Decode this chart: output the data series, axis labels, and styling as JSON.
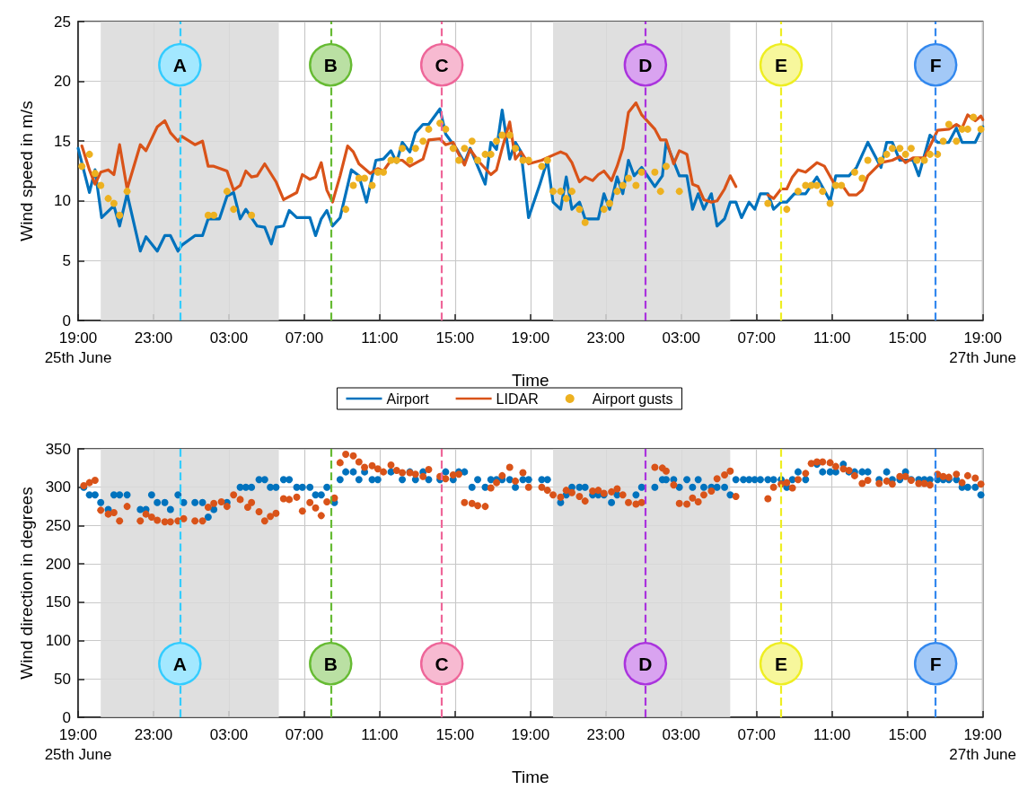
{
  "chart_data": [
    {
      "type": "line",
      "xlabel": "Time",
      "ylabel": "Wind speed in m/s",
      "xlim": [
        "--06-25T19:00",
        "--06-27T19:00"
      ],
      "xticks": [
        {
          "value": "--06-25T19:00",
          "label": "19:00\n25th June"
        },
        {
          "value": "--06-25T23:00",
          "label": "23:00"
        },
        {
          "value": "--06-26T03:00",
          "label": "03:00"
        },
        {
          "value": "--06-26T07:00",
          "label": "07:00"
        },
        {
          "value": "--06-26T11:00",
          "label": "11:00"
        },
        {
          "value": "--06-26T15:00",
          "label": "15:00"
        },
        {
          "value": "--06-26T19:00",
          "label": "19:00"
        },
        {
          "value": "--06-26T23:00",
          "label": "23:00"
        },
        {
          "value": "--06-27T03:00",
          "label": "03:00"
        },
        {
          "value": "--06-27T07:00",
          "label": "07:00"
        },
        {
          "value": "--06-27T11:00",
          "label": "11:00"
        },
        {
          "value": "--06-27T15:00",
          "label": "15:00"
        },
        {
          "value": "--06-27T19:00",
          "label": "19:00\n27th June"
        }
      ],
      "ylim": [
        0,
        25
      ],
      "yticks": [
        0,
        5,
        10,
        15,
        20,
        25
      ],
      "grid": true,
      "legend": "bottom",
      "marker": "none",
      "bands": [
        {
          "axis": "x",
          "from": "--06-25T20:12",
          "to": "--06-26T05:39",
          "color": "#d9d9d9"
        },
        {
          "axis": "x",
          "from": "--06-26T20:12",
          "to": "--06-27T05:36",
          "color": "#d9d9d9"
        }
      ],
      "ref_lines": [
        {
          "axis": "x",
          "value": "--06-26T00:24",
          "label": "A",
          "color": "#33ccff",
          "line_style": "dashed"
        },
        {
          "axis": "x",
          "value": "--06-26T08:24",
          "label": "B",
          "color": "#66bb33",
          "line_style": "dashed"
        },
        {
          "axis": "x",
          "value": "--06-26T14:18",
          "label": "C",
          "color": "#ee6699",
          "line_style": "dashed"
        },
        {
          "axis": "x",
          "value": "--06-27T01:06",
          "label": "D",
          "color": "#aa33dd",
          "line_style": "dashed"
        },
        {
          "axis": "x",
          "value": "--06-27T08:18",
          "label": "E",
          "color": "#eeee22",
          "line_style": "dashed"
        },
        {
          "axis": "x",
          "value": "--06-27T16:30",
          "label": "F",
          "color": "#3388ee",
          "line_style": "dashed"
        }
      ],
      "series": [
        {
          "name": "Airport",
          "color": "#0072bd",
          "x": [
            "--06-25T19:00",
            "--06-25T19:36",
            "--06-25T19:54",
            "--06-25T20:15",
            "--06-25T20:54",
            "--06-25T21:12",
            "--06-25T21:36",
            "--06-25T22:18",
            "--06-25T22:36",
            "--06-25T23:12",
            "--06-25T23:36",
            "--06-25T23:54",
            "--06-26T00:18",
            "--06-26T00:30",
            "--06-26T01:12",
            "--06-26T01:36",
            "--06-26T01:54",
            "--06-26T02:30",
            "--06-26T02:54",
            "--06-26T03:15",
            "--06-26T03:36",
            "--06-26T03:54",
            "--06-26T04:30",
            "--06-26T04:54",
            "--06-26T05:15",
            "--06-26T05:30",
            "--06-26T05:54",
            "--06-26T06:12",
            "--06-26T06:36",
            "--06-26T07:18",
            "--06-26T07:36",
            "--06-26T07:54",
            "--06-26T08:12",
            "--06-26T08:30",
            "--06-26T08:54",
            "--06-26T09:30",
            "--06-26T09:54",
            "--06-26T10:18",
            "--06-26T10:48",
            "--06-26T11:12",
            "--06-26T11:36",
            "--06-26T11:54",
            "--06-26T12:12",
            "--06-26T12:36",
            "--06-26T12:54",
            "--06-26T13:18",
            "--06-26T13:36",
            "--06-26T14:12",
            "--06-26T14:30",
            "--06-26T15:06",
            "--06-26T15:30",
            "--06-26T15:48",
            "--06-26T16:12",
            "--06-26T16:36",
            "--06-26T16:54",
            "--06-26T17:12",
            "--06-26T17:30",
            "--06-26T17:54",
            "--06-26T18:12",
            "--06-26T18:30",
            "--06-26T18:54",
            "--06-26T19:30",
            "--06-26T19:54",
            "--06-26T20:12",
            "--06-26T20:36",
            "--06-26T20:54",
            "--06-26T21:12",
            "--06-26T21:36",
            "--06-26T21:54",
            "--06-26T22:36",
            "--06-26T22:54",
            "--06-26T23:12",
            "--06-26T23:36",
            "--06-26T23:54",
            "--06-27T00:12",
            "--06-27T00:30",
            "--06-27T00:54",
            "--06-27T01:36",
            "--06-27T02:00",
            "--06-27T02:12",
            "--06-27T02:54",
            "--06-27T03:18",
            "--06-27T03:36",
            "--06-27T03:54",
            "--06-27T04:12",
            "--06-27T04:36",
            "--06-27T04:54",
            "--06-27T05:18",
            "--06-27T05:36",
            "--06-27T05:54",
            "--06-27T06:12",
            "--06-27T06:36",
            "--06-27T06:54",
            "--06-27T07:12",
            "--06-27T07:36",
            "--06-27T07:54",
            "--06-27T08:18",
            "--06-27T08:36",
            "--06-27T09:00",
            "--06-27T09:36",
            "--06-27T10:12",
            "--06-27T10:54",
            "--06-27T11:12",
            "--06-27T11:54",
            "--06-27T12:18",
            "--06-27T12:54",
            "--06-27T13:36",
            "--06-27T13:54",
            "--06-27T14:12",
            "--06-27T14:36",
            "--06-27T15:18",
            "--06-27T15:36",
            "--06-27T16:12",
            "--06-27T16:36",
            "--06-27T17:12",
            "--06-27T17:36",
            "--06-27T17:54",
            "--06-27T18:36",
            "--06-27T19:00"
          ],
          "values": [
            14.4,
            10.7,
            12.6,
            8.6,
            9.6,
            7.9,
            10.6,
            5.8,
            7.0,
            5.8,
            7.1,
            7.1,
            5.8,
            6.3,
            7.1,
            7.1,
            8.5,
            8.5,
            10.4,
            10.7,
            8.5,
            9.3,
            7.9,
            7.8,
            6.4,
            7.8,
            7.9,
            9.2,
            8.6,
            8.6,
            7.1,
            8.5,
            9.2,
            7.9,
            8.6,
            12.6,
            12.1,
            9.9,
            13.4,
            13.5,
            14.2,
            13.2,
            14.9,
            14.1,
            15.7,
            16.4,
            16.4,
            17.7,
            15.6,
            14.3,
            13.2,
            14.4,
            12.9,
            11.4,
            14.9,
            14.3,
            17.6,
            13.5,
            14.9,
            14.1,
            8.6,
            11.4,
            13.4,
            9.9,
            9.3,
            12.0,
            9.3,
            9.9,
            8.5,
            8.5,
            10.6,
            9.3,
            12.0,
            10.6,
            13.4,
            12.1,
            12.8,
            11.2,
            12.1,
            14.9,
            12.1,
            12.1,
            9.3,
            10.6,
            9.3,
            10.6,
            7.9,
            8.5,
            9.9,
            9.9,
            8.6,
            9.9,
            9.3,
            10.6,
            10.6,
            9.3,
            9.9,
            9.9,
            10.6,
            10.6,
            12.0,
            10.0,
            12.1,
            12.1,
            12.8,
            14.9,
            12.8,
            14.9,
            14.9,
            13.4,
            13.4,
            12.1,
            15.5,
            14.9,
            14.9,
            16.1,
            14.9,
            14.9,
            16.2
          ]
        },
        {
          "name": "LIDAR",
          "color": "#d95319",
          "x": [
            "--06-25T19:12",
            "--06-25T19:36",
            "--06-25T19:54",
            "--06-25T20:12",
            "--06-25T20:36",
            "--06-25T20:54",
            "--06-25T21:12",
            "--06-25T21:36",
            "--06-25T22:18",
            "--06-25T22:36",
            "--06-25T23:12",
            "--06-25T23:36",
            "--06-25T23:54",
            "--06-26T00:18",
            "--06-26T00:30",
            "--06-26T01:12",
            "--06-26T01:36",
            "--06-26T01:54",
            "--06-26T02:12",
            "--06-26T02:54",
            "--06-26T03:15",
            "--06-26T03:36",
            "--06-26T03:54",
            "--06-26T04:12",
            "--06-26T04:30",
            "--06-26T04:54",
            "--06-26T05:30",
            "--06-26T05:54",
            "--06-26T06:36",
            "--06-26T06:54",
            "--06-26T07:18",
            "--06-26T07:36",
            "--06-26T07:54",
            "--06-26T08:12",
            "--06-26T08:30",
            "--06-26T08:54",
            "--06-26T09:18",
            "--06-26T09:36",
            "--06-26T09:54",
            "--06-26T10:30",
            "--06-26T10:54",
            "--06-26T11:12",
            "--06-26T11:36",
            "--06-26T12:12",
            "--06-26T12:36",
            "--06-26T13:18",
            "--06-26T13:36",
            "--06-26T14:12",
            "--06-26T14:30",
            "--06-26T14:54",
            "--06-26T15:06",
            "--06-26T15:30",
            "--06-26T15:48",
            "--06-26T16:12",
            "--06-26T16:54",
            "--06-26T17:12",
            "--06-26T17:30",
            "--06-26T17:54",
            "--06-26T18:12",
            "--06-26T18:30",
            "--06-26T18:54",
            "--06-26T19:36",
            "--06-26T20:18",
            "--06-26T20:36",
            "--06-26T20:54",
            "--06-26T21:12",
            "--06-26T21:36",
            "--06-26T21:54",
            "--06-26T22:18",
            "--06-26T22:36",
            "--06-26T22:54",
            "--06-26T23:18",
            "--06-26T23:36",
            "--06-26T23:54",
            "--06-27T00:12",
            "--06-27T00:36",
            "--06-27T00:54",
            "--06-27T01:36",
            "--06-27T01:54",
            "--06-27T02:12",
            "--06-27T02:36",
            "--06-27T02:54",
            "--06-27T03:18",
            "--06-27T03:36",
            "--06-27T03:54",
            "--06-27T04:12",
            "--06-27T04:36",
            "--06-27T04:54",
            "--06-27T05:18",
            "--06-27T05:36",
            "--06-27T05:54",
            "--06-27T06:42",
            "--06-27T07:36",
            "--06-27T07:54",
            "--06-27T08:18",
            "--06-27T08:36",
            "--06-27T08:54",
            "--06-27T09:12",
            "--06-27T09:36",
            "--06-27T10:12",
            "--06-27T10:36",
            "--06-27T11:12",
            "--06-27T11:30",
            "--06-27T11:54",
            "--06-27T12:18",
            "--06-27T12:36",
            "--06-27T12:54",
            "--06-27T13:36",
            "--06-27T14:12",
            "--06-27T14:36",
            "--06-27T14:54",
            "--06-27T15:18",
            "--06-27T15:54",
            "--06-27T16:36",
            "--06-27T17:12",
            "--06-27T17:36",
            "--06-27T17:54",
            "--06-27T18:12",
            "--06-27T18:36",
            "--06-27T18:54",
            "--06-27T19:00"
          ],
          "values": [
            14.6,
            12.6,
            11.4,
            12.4,
            12.6,
            12.2,
            14.7,
            11.0,
            14.7,
            14.2,
            16.2,
            16.7,
            15.7,
            15.0,
            15.4,
            14.7,
            15.0,
            12.9,
            12.9,
            12.5,
            10.9,
            11.3,
            12.5,
            12.0,
            12.1,
            13.1,
            11.6,
            10.1,
            10.7,
            12.2,
            11.8,
            12.0,
            13.2,
            10.9,
            9.9,
            12.1,
            14.6,
            14.1,
            13.1,
            12.3,
            12.7,
            12.5,
            13.4,
            13.4,
            12.9,
            13.5,
            15.1,
            15.2,
            14.7,
            14.9,
            14.2,
            13.0,
            14.3,
            13.4,
            12.2,
            12.6,
            14.4,
            16.6,
            13.5,
            14.1,
            13.1,
            13.4,
            13.9,
            14.1,
            13.9,
            13.2,
            11.6,
            12.0,
            11.7,
            12.2,
            12.5,
            11.7,
            12.9,
            14.4,
            17.4,
            18.2,
            17.2,
            16.0,
            15.1,
            15.1,
            13.1,
            14.2,
            13.9,
            11.4,
            11.2,
            10.1,
            9.9,
            10.0,
            11.0,
            12.1,
            11.2,
            null,
            10.5,
            10.2,
            11.0,
            11.0,
            12.0,
            12.6,
            12.4,
            13.2,
            12.9,
            11.2,
            11.4,
            10.5,
            10.5,
            10.9,
            12.1,
            13.2,
            13.4,
            13.7,
            13.2,
            13.6,
            13.6,
            15.9,
            16.0,
            16.4,
            16.1,
            17.2,
            16.7,
            17.1,
            16.8
          ]
        },
        {
          "name": "Airport gusts",
          "type": "scatter",
          "marker": "circle",
          "color": "#edb120",
          "x": [
            "--06-25T19:12",
            "--06-25T19:36",
            "--06-25T19:54",
            "--06-25T20:12",
            "--06-25T20:36",
            "--06-25T20:54",
            "--06-25T21:12",
            "--06-25T21:36",
            "--06-26T01:54",
            "--06-26T02:12",
            "--06-26T02:54",
            "--06-26T03:15",
            "--06-26T04:12",
            "--06-26T09:12",
            "--06-26T09:36",
            "--06-26T09:54",
            "--06-26T10:12",
            "--06-26T10:36",
            "--06-26T10:54",
            "--06-26T11:12",
            "--06-26T11:36",
            "--06-26T11:54",
            "--06-26T12:12",
            "--06-26T12:36",
            "--06-26T12:54",
            "--06-26T13:18",
            "--06-26T13:36",
            "--06-26T14:12",
            "--06-26T14:30",
            "--06-26T14:54",
            "--06-26T15:12",
            "--06-26T15:30",
            "--06-26T15:54",
            "--06-26T16:12",
            "--06-26T16:36",
            "--06-26T16:54",
            "--06-26T17:12",
            "--06-26T17:30",
            "--06-26T17:54",
            "--06-26T18:12",
            "--06-26T18:36",
            "--06-26T18:54",
            "--06-26T19:36",
            "--06-26T19:54",
            "--06-26T20:12",
            "--06-26T20:36",
            "--06-26T20:54",
            "--06-26T21:12",
            "--06-26T21:36",
            "--06-26T21:54",
            "--06-26T22:54",
            "--06-26T23:12",
            "--06-26T23:36",
            "--06-26T23:54",
            "--06-27T00:12",
            "--06-27T00:36",
            "--06-27T00:54",
            "--06-27T01:36",
            "--06-27T01:54",
            "--06-27T02:12",
            "--06-27T02:54",
            "--06-27T07:36",
            "--06-27T08:36",
            "--06-27T09:12",
            "--06-27T09:36",
            "--06-27T09:54",
            "--06-27T10:12",
            "--06-27T10:30",
            "--06-27T10:54",
            "--06-27T11:12",
            "--06-27T11:30",
            "--06-27T12:12",
            "--06-27T12:36",
            "--06-27T12:54",
            "--06-27T13:36",
            "--06-27T13:54",
            "--06-27T14:12",
            "--06-27T14:36",
            "--06-27T14:54",
            "--06-27T15:12",
            "--06-27T15:30",
            "--06-27T15:54",
            "--06-27T16:12",
            "--06-27T16:36",
            "--06-27T16:54",
            "--06-27T17:12",
            "--06-27T17:36",
            "--06-27T17:54",
            "--06-27T18:12",
            "--06-27T18:30",
            "--06-27T18:54"
          ],
          "values": [
            12.9,
            13.9,
            12.3,
            11.3,
            10.2,
            9.8,
            8.8,
            10.8,
            8.8,
            8.8,
            10.8,
            9.3,
            8.8,
            9.3,
            11.3,
            11.9,
            11.9,
            11.3,
            12.4,
            12.4,
            13.4,
            13.4,
            14.4,
            13.4,
            14.4,
            15.0,
            16.0,
            16.5,
            16.0,
            14.4,
            13.4,
            14.4,
            15.0,
            13.4,
            13.9,
            13.9,
            15.0,
            15.5,
            15.5,
            14.4,
            13.4,
            13.4,
            12.9,
            13.4,
            10.8,
            10.8,
            10.2,
            10.8,
            9.3,
            8.2,
            9.3,
            9.8,
            10.8,
            11.3,
            11.9,
            11.3,
            12.4,
            12.4,
            10.8,
            12.9,
            10.8,
            9.8,
            9.3,
            10.8,
            11.3,
            11.3,
            11.3,
            10.8,
            9.8,
            11.3,
            11.3,
            12.4,
            11.9,
            13.4,
            13.4,
            13.9,
            14.4,
            14.4,
            13.9,
            14.4,
            13.4,
            13.4,
            13.9,
            13.9,
            15.0,
            16.4,
            15.0,
            16.0,
            16.0,
            17.0,
            16.0
          ]
        }
      ]
    },
    {
      "type": "scatter",
      "xlabel": "Time",
      "ylabel": "Wind direction in degrees",
      "xlim": [
        "--06-25T19:00",
        "--06-27T19:00"
      ],
      "xticks": [
        {
          "value": "--06-25T19:00",
          "label": "19:00\n25th June"
        },
        {
          "value": "--06-25T23:00",
          "label": "23:00"
        },
        {
          "value": "--06-26T03:00",
          "label": "03:00"
        },
        {
          "value": "--06-26T07:00",
          "label": "07:00"
        },
        {
          "value": "--06-26T11:00",
          "label": "11:00"
        },
        {
          "value": "--06-26T15:00",
          "label": "15:00"
        },
        {
          "value": "--06-26T19:00",
          "label": "19:00"
        },
        {
          "value": "--06-26T23:00",
          "label": "23:00"
        },
        {
          "value": "--06-27T03:00",
          "label": "03:00"
        },
        {
          "value": "--06-27T07:00",
          "label": "07:00"
        },
        {
          "value": "--06-27T11:00",
          "label": "11:00"
        },
        {
          "value": "--06-27T15:00",
          "label": "15:00"
        },
        {
          "value": "--06-27T19:00",
          "label": "19:00\n27th June"
        }
      ],
      "ylim": [
        0,
        350
      ],
      "yticks": [
        0,
        50,
        100,
        150,
        200,
        250,
        300,
        350
      ],
      "grid": true,
      "marker": "circle",
      "bands": [
        {
          "axis": "x",
          "from": "--06-25T20:12",
          "to": "--06-26T05:39",
          "color": "#d9d9d9"
        },
        {
          "axis": "x",
          "from": "--06-26T20:12",
          "to": "--06-27T05:36",
          "color": "#d9d9d9"
        }
      ],
      "ref_lines": [
        {
          "axis": "x",
          "value": "--06-26T00:24",
          "label": "A",
          "color": "#33ccff",
          "line_style": "dashed"
        },
        {
          "axis": "x",
          "value": "--06-26T08:24",
          "label": "B",
          "color": "#66bb33",
          "line_style": "dashed"
        },
        {
          "axis": "x",
          "value": "--06-26T14:18",
          "label": "C",
          "color": "#ee6699",
          "line_style": "dashed"
        },
        {
          "axis": "x",
          "value": "--06-27T01:06",
          "label": "D",
          "color": "#aa33dd",
          "line_style": "dashed"
        },
        {
          "axis": "x",
          "value": "--06-27T08:18",
          "label": "E",
          "color": "#eeee22",
          "line_style": "dashed"
        },
        {
          "axis": "x",
          "value": "--06-27T16:30",
          "label": "F",
          "color": "#3388ee",
          "line_style": "dashed"
        }
      ],
      "series": [
        {
          "color": "#0072bd",
          "x": [
            "--06-25T19:18",
            "--06-25T19:36",
            "--06-25T19:54",
            "--06-25T20:12",
            "--06-25T20:36",
            "--06-25T20:54",
            "--06-25T21:12",
            "--06-25T21:36",
            "--06-25T22:18",
            "--06-25T22:36",
            "--06-25T22:54",
            "--06-25T23:12",
            "--06-25T23:36",
            "--06-25T23:54",
            "--06-26T00:18",
            "--06-26T00:36",
            "--06-26T01:12",
            "--06-26T01:36",
            "--06-26T01:54",
            "--06-26T02:12",
            "--06-26T02:54",
            "--06-26T03:36",
            "--06-26T03:54",
            "--06-26T04:12",
            "--06-26T04:36",
            "--06-26T04:54",
            "--06-26T05:12",
            "--06-26T05:30",
            "--06-26T05:54",
            "--06-26T06:12",
            "--06-26T06:36",
            "--06-26T06:54",
            "--06-26T07:18",
            "--06-26T07:36",
            "--06-26T07:54",
            "--06-26T08:12",
            "--06-26T08:36",
            "--06-26T08:54",
            "--06-26T09:12",
            "--06-26T09:36",
            "--06-26T09:54",
            "--06-26T10:12",
            "--06-26T10:36",
            "--06-26T10:54",
            "--06-26T11:36",
            "--06-26T12:12",
            "--06-26T12:36",
            "--06-26T12:54",
            "--06-26T13:18",
            "--06-26T13:36",
            "--06-26T14:12",
            "--06-26T14:30",
            "--06-26T14:54",
            "--06-26T15:12",
            "--06-26T15:30",
            "--06-26T15:54",
            "--06-26T16:12",
            "--06-26T16:36",
            "--06-26T16:54",
            "--06-26T17:12",
            "--06-26T17:30",
            "--06-26T17:54",
            "--06-26T18:12",
            "--06-26T18:36",
            "--06-26T18:54",
            "--06-26T19:36",
            "--06-26T19:54",
            "--06-26T20:36",
            "--06-26T20:54",
            "--06-26T21:12",
            "--06-26T21:36",
            "--06-26T21:54",
            "--06-26T22:18",
            "--06-26T22:36",
            "--06-26T22:54",
            "--06-26T23:18",
            "--06-26T23:36",
            "--06-27T00:36",
            "--06-27T00:54",
            "--06-27T01:36",
            "--06-27T02:00",
            "--06-27T02:12",
            "--06-27T02:36",
            "--06-27T02:54",
            "--06-27T03:18",
            "--06-27T03:36",
            "--06-27T03:54",
            "--06-27T04:12",
            "--06-27T04:36",
            "--06-27T04:54",
            "--06-27T05:18",
            "--06-27T05:36",
            "--06-27T05:54",
            "--06-27T06:18",
            "--06-27T06:36",
            "--06-27T06:54",
            "--06-27T07:12",
            "--06-27T07:36",
            "--06-27T07:54",
            "--06-27T08:18",
            "--06-27T08:36",
            "--06-27T08:54",
            "--06-27T09:12",
            "--06-27T09:36",
            "--06-27T10:12",
            "--06-27T10:30",
            "--06-27T10:54",
            "--06-27T11:12",
            "--06-27T11:36",
            "--06-27T11:54",
            "--06-27T12:12",
            "--06-27T12:36",
            "--06-27T12:54",
            "--06-27T13:30",
            "--06-27T13:54",
            "--06-27T14:12",
            "--06-27T14:36",
            "--06-27T14:54",
            "--06-27T15:12",
            "--06-27T15:36",
            "--06-27T15:54",
            "--06-27T16:12",
            "--06-27T16:36",
            "--06-27T16:54",
            "--06-27T17:12",
            "--06-27T17:36",
            "--06-27T17:54",
            "--06-27T18:12",
            "--06-27T18:36",
            "--06-27T18:54"
          ],
          "values": [
            300,
            290,
            290,
            280,
            271,
            290,
            290,
            290,
            271,
            271,
            290,
            280,
            280,
            271,
            290,
            280,
            280,
            280,
            261,
            271,
            280,
            300,
            300,
            300,
            310,
            310,
            300,
            300,
            310,
            310,
            300,
            300,
            300,
            290,
            290,
            300,
            280,
            310,
            320,
            320,
            310,
            320,
            310,
            310,
            320,
            310,
            320,
            310,
            320,
            310,
            310,
            320,
            310,
            320,
            320,
            300,
            310,
            300,
            310,
            310,
            310,
            310,
            300,
            310,
            310,
            310,
            310,
            280,
            290,
            300,
            300,
            300,
            290,
            290,
            290,
            280,
            290,
            290,
            300,
            300,
            310,
            310,
            310,
            300,
            310,
            300,
            310,
            300,
            300,
            300,
            300,
            290,
            310,
            310,
            310,
            310,
            310,
            310,
            310,
            310,
            300,
            310,
            320,
            310,
            330,
            320,
            320,
            320,
            330,
            320,
            320,
            320,
            320,
            310,
            320,
            310,
            310,
            320,
            310,
            310,
            310,
            310,
            310,
            310,
            310,
            310,
            300,
            300,
            300,
            290
          ]
        },
        {
          "color": "#d95319",
          "x": [
            "--06-25T19:18",
            "--06-25T19:36",
            "--06-25T19:54",
            "--06-25T20:12",
            "--06-25T20:36",
            "--06-25T20:54",
            "--06-25T21:12",
            "--06-25T21:36",
            "--06-25T22:18",
            "--06-25T22:36",
            "--06-25T22:54",
            "--06-25T23:12",
            "--06-25T23:36",
            "--06-25T23:54",
            "--06-26T00:18",
            "--06-26T00:36",
            "--06-26T01:12",
            "--06-26T01:36",
            "--06-26T01:54",
            "--06-26T02:12",
            "--06-26T02:36",
            "--06-26T02:54",
            "--06-26T03:15",
            "--06-26T03:36",
            "--06-26T04:00",
            "--06-26T04:12",
            "--06-26T04:36",
            "--06-26T04:54",
            "--06-26T05:12",
            "--06-26T05:30",
            "--06-26T05:54",
            "--06-26T06:12",
            "--06-26T06:36",
            "--06-26T06:54",
            "--06-26T07:18",
            "--06-26T07:36",
            "--06-26T07:54",
            "--06-26T08:12",
            "--06-26T08:36",
            "--06-26T08:54",
            "--06-26T09:12",
            "--06-26T09:36",
            "--06-26T09:54",
            "--06-26T10:12",
            "--06-26T10:36",
            "--06-26T10:54",
            "--06-26T11:12",
            "--06-26T11:36",
            "--06-26T11:54",
            "--06-26T12:12",
            "--06-26T12:36",
            "--06-26T12:54",
            "--06-26T13:18",
            "--06-26T13:36",
            "--06-26T14:12",
            "--06-26T14:30",
            "--06-26T14:54",
            "--06-26T15:12",
            "--06-26T15:30",
            "--06-26T15:54",
            "--06-26T16:12",
            "--06-26T16:36",
            "--06-26T16:54",
            "--06-26T17:12",
            "--06-26T17:30",
            "--06-26T17:54",
            "--06-26T18:12",
            "--06-26T18:36",
            "--06-26T18:54",
            "--06-26T19:36",
            "--06-26T19:54",
            "--06-26T20:12",
            "--06-26T20:36",
            "--06-26T20:54",
            "--06-26T21:12",
            "--06-26T21:36",
            "--06-26T21:54",
            "--06-26T22:18",
            "--06-26T22:36",
            "--06-26T22:54",
            "--06-26T23:18",
            "--06-26T23:36",
            "--06-26T23:54",
            "--06-27T00:12",
            "--06-27T00:36",
            "--06-27T00:54",
            "--06-27T01:36",
            "--06-27T02:00",
            "--06-27T02:12",
            "--06-27T02:36",
            "--06-27T02:54",
            "--06-27T03:18",
            "--06-27T03:36",
            "--06-27T03:54",
            "--06-27T04:12",
            "--06-27T04:36",
            "--06-27T04:54",
            "--06-27T05:18",
            "--06-27T05:36",
            "--06-27T05:54",
            "--06-27T07:36",
            "--06-27T07:54",
            "--06-27T08:18",
            "--06-27T08:36",
            "--06-27T08:54",
            "--06-27T09:12",
            "--06-27T09:36",
            "--06-27T09:54",
            "--06-27T10:12",
            "--06-27T10:30",
            "--06-27T10:54",
            "--06-27T11:12",
            "--06-27T11:36",
            "--06-27T11:54",
            "--06-27T12:12",
            "--06-27T12:36",
            "--06-27T12:54",
            "--06-27T13:30",
            "--06-27T13:54",
            "--06-27T14:12",
            "--06-27T14:36",
            "--06-27T14:54",
            "--06-27T15:12",
            "--06-27T15:36",
            "--06-27T15:54",
            "--06-27T16:12",
            "--06-27T16:36",
            "--06-27T16:54",
            "--06-27T17:12",
            "--06-27T17:36",
            "--06-27T17:54",
            "--06-27T18:12",
            "--06-27T18:36",
            "--06-27T18:54"
          ],
          "values": [
            302,
            306,
            309,
            270,
            265,
            267,
            256,
            275,
            256,
            265,
            261,
            257,
            255,
            255,
            256,
            259,
            256,
            256,
            274,
            279,
            281,
            275,
            290,
            284,
            274,
            280,
            268,
            256,
            262,
            266,
            285,
            284,
            287,
            269,
            280,
            273,
            263,
            281,
            286,
            332,
            343,
            341,
            333,
            326,
            328,
            324,
            320,
            329,
            322,
            319,
            319,
            317,
            314,
            323,
            314,
            311,
            316,
            317,
            280,
            279,
            276,
            275,
            299,
            306,
            315,
            326,
            308,
            319,
            300,
            300,
            296,
            290,
            287,
            296,
            293,
            288,
            282,
            295,
            296,
            292,
            294,
            298,
            290,
            280,
            278,
            280,
            326,
            325,
            321,
            303,
            279,
            278,
            286,
            281,
            290,
            295,
            311,
            316,
            321,
            288,
            285,
            300,
            304,
            306,
            299,
            310,
            318,
            331,
            333,
            333,
            332,
            327,
            324,
            322,
            315,
            305,
            309,
            305,
            308,
            304,
            314,
            314,
            309,
            305,
            305,
            303,
            317,
            314,
            313,
            317,
            306,
            315,
            312,
            304
          ]
        }
      ]
    }
  ]
}
